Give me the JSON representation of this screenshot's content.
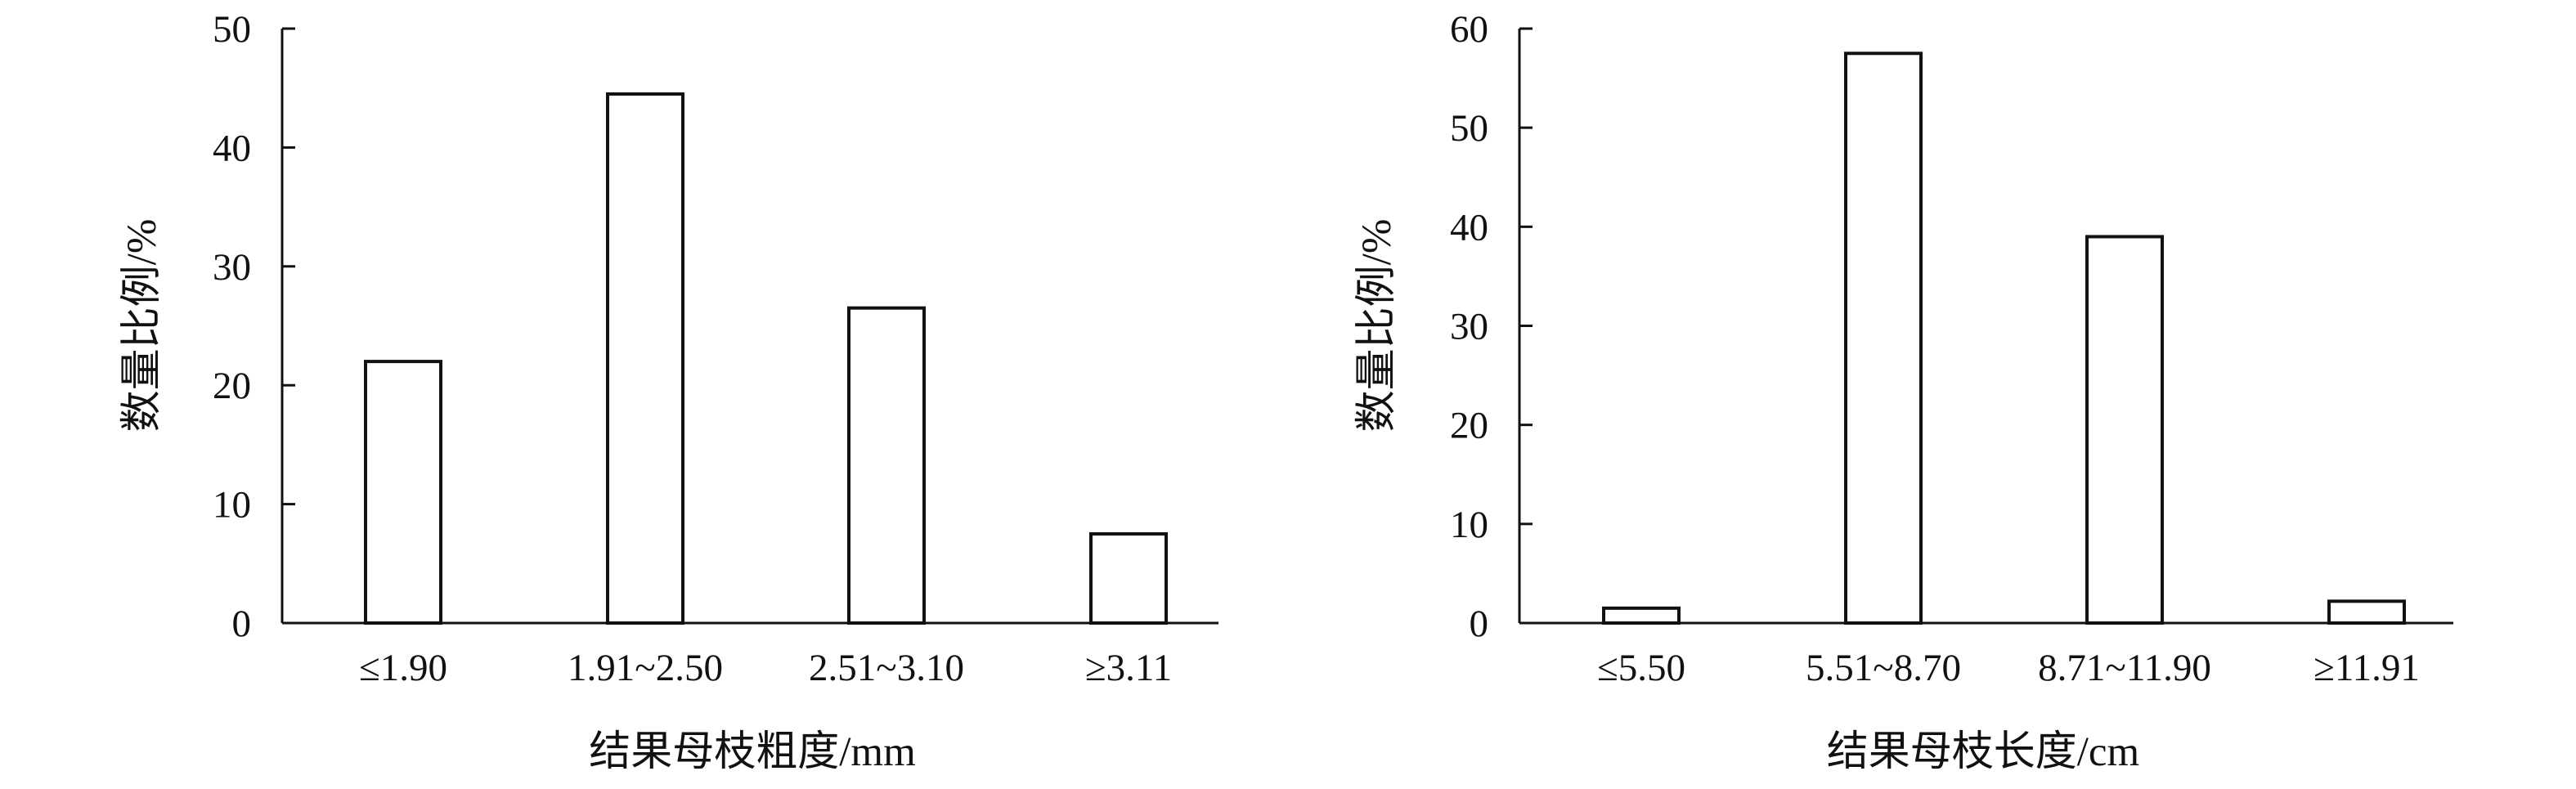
{
  "chart_data": [
    {
      "type": "bar",
      "categories": [
        "≤1.90",
        "1.91~2.50",
        "2.51~3.10",
        "≥3.11"
      ],
      "values": [
        22,
        44.5,
        26.5,
        7.5
      ],
      "xlabel": "结果母枝粗度/mm",
      "ylabel": "数量比例/%",
      "ylim": [
        0,
        50
      ],
      "yticks": [
        0,
        10,
        20,
        30,
        40,
        50
      ],
      "grid": false,
      "bar_fill": "#ffffff",
      "bar_stroke": "#111111"
    },
    {
      "type": "bar",
      "categories": [
        "≤5.50",
        "5.51~8.70",
        "8.71~11.90",
        "≥11.91"
      ],
      "values": [
        1.5,
        57.5,
        39,
        2.2
      ],
      "xlabel": "结果母枝长度/cm",
      "ylabel": "数量比例/%",
      "ylim": [
        0,
        60
      ],
      "yticks": [
        0,
        10,
        20,
        30,
        40,
        50,
        60
      ],
      "grid": false,
      "bar_fill": "#ffffff",
      "bar_stroke": "#111111"
    }
  ]
}
